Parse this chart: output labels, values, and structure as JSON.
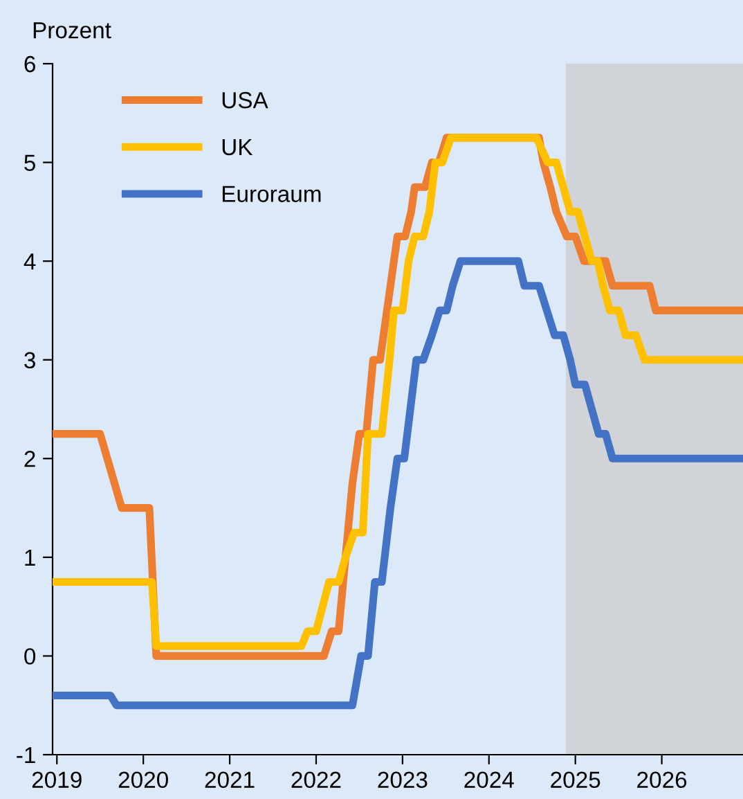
{
  "chart_data": {
    "type": "line",
    "ylabel": "Prozent",
    "xlim": [
      2018.95,
      2026.94
    ],
    "xticks": [
      2019,
      2020,
      2021,
      2022,
      2023,
      2024,
      2025,
      2026
    ],
    "ylim": [
      -1,
      6
    ],
    "yticks": [
      -1,
      0,
      1,
      2,
      3,
      4,
      5,
      6
    ],
    "grid": false,
    "legend": "top left",
    "line_style": "solid",
    "marker": "none",
    "bands": [
      {
        "axis": "x",
        "from": 2024.89,
        "to": 2026.94,
        "color": "#d0d3d8"
      }
    ],
    "series": [
      {
        "name": "USA",
        "color": "#ed7d31",
        "x": [
          2018.95,
          2019.5,
          2019.75,
          2020.07,
          2020.15,
          2022.09,
          2022.18,
          2022.26,
          2022.34,
          2022.42,
          2022.5,
          2022.58,
          2022.66,
          2022.74,
          2022.86,
          2022.94,
          2023.03,
          2023.1,
          2023.14,
          2023.26,
          2023.34,
          2023.42,
          2023.51,
          2024.58,
          2024.63,
          2024.71,
          2024.78,
          2024.9,
          2025.0,
          2025.1,
          2025.19,
          2025.35,
          2025.43,
          2025.86,
          2025.93,
          2026.94
        ],
        "values": [
          2.25,
          2.25,
          1.5,
          1.5,
          0,
          0,
          0.25,
          0.25,
          1.0,
          1.75,
          2.25,
          2.25,
          3.0,
          3.0,
          3.75,
          4.25,
          4.25,
          4.5,
          4.75,
          4.75,
          5.0,
          5.0,
          5.25,
          5.25,
          5.0,
          4.75,
          4.5,
          4.25,
          4.25,
          4.0,
          4.0,
          4.0,
          3.75,
          3.75,
          3.5,
          3.5
        ]
      },
      {
        "name": "UK",
        "color": "#ffc000",
        "x": [
          2018.95,
          2020.1,
          2020.15,
          2021.83,
          2021.9,
          2022.0,
          2022.15,
          2022.26,
          2022.34,
          2022.44,
          2022.54,
          2022.6,
          2022.76,
          2022.85,
          2022.9,
          2023.0,
          2023.07,
          2023.14,
          2023.24,
          2023.31,
          2023.38,
          2023.46,
          2023.56,
          2024.55,
          2024.68,
          2024.78,
          2024.86,
          2024.94,
          2025.03,
          2025.11,
          2025.19,
          2025.26,
          2025.32,
          2025.4,
          2025.5,
          2025.58,
          2025.7,
          2025.8,
          2026.94
        ],
        "values": [
          0.75,
          0.75,
          0.1,
          0.1,
          0.25,
          0.25,
          0.75,
          0.75,
          1.0,
          1.25,
          1.25,
          2.25,
          2.25,
          3.0,
          3.5,
          3.5,
          4.0,
          4.25,
          4.25,
          4.5,
          5.0,
          5.0,
          5.25,
          5.25,
          5.0,
          5.0,
          4.75,
          4.5,
          4.5,
          4.25,
          4.0,
          4.0,
          3.75,
          3.5,
          3.5,
          3.25,
          3.25,
          3.0,
          3.0
        ]
      },
      {
        "name": "Euroraum",
        "color": "#4472c4",
        "x": [
          2018.95,
          2019.62,
          2019.69,
          2022.42,
          2022.52,
          2022.6,
          2022.68,
          2022.76,
          2022.86,
          2022.94,
          2023.02,
          2023.16,
          2023.24,
          2023.34,
          2023.43,
          2023.51,
          2023.58,
          2023.67,
          2024.34,
          2024.41,
          2024.58,
          2024.67,
          2024.76,
          2024.86,
          2024.94,
          2025.0,
          2025.11,
          2025.19,
          2025.27,
          2025.35,
          2025.43,
          2026.94
        ],
        "values": [
          -0.4,
          -0.4,
          -0.5,
          -0.5,
          0,
          0,
          0.75,
          0.75,
          1.5,
          2.0,
          2.0,
          3.0,
          3.0,
          3.25,
          3.5,
          3.5,
          3.75,
          4.0,
          4.0,
          3.75,
          3.75,
          3.5,
          3.25,
          3.25,
          3.0,
          2.75,
          2.75,
          2.5,
          2.25,
          2.25,
          2.0,
          2.0
        ]
      }
    ]
  }
}
